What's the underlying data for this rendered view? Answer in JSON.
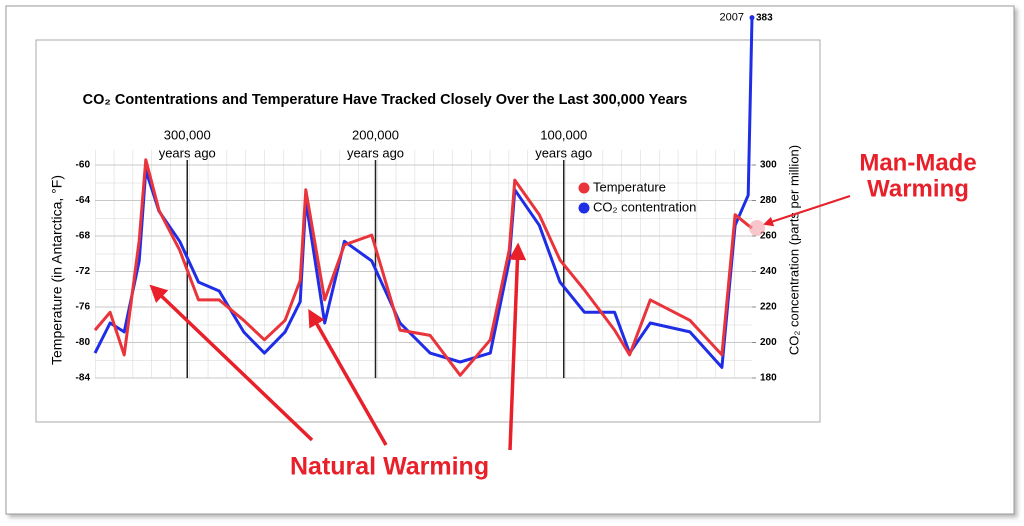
{
  "chart_data": {
    "type": "line",
    "title": "CO₂ Contentrations and Temperature Have Tracked Closely Over the Last 300,000 Years",
    "ylabel": "Temperature (in Antarctica, °F)",
    "y2label": "CO₂ concentration (parts per million)",
    "x": [
      349000,
      341000,
      333500,
      325500,
      322000,
      315000,
      304000,
      294000,
      283000,
      270000,
      259000,
      248000,
      240000,
      237000,
      227000,
      216500,
      202000,
      187000,
      171000,
      155000,
      139000,
      129000,
      126000,
      113000,
      102000,
      89000,
      73000,
      65000,
      54000,
      33000,
      16000,
      9000,
      2000,
      0
    ],
    "xlim": [
      349000,
      0
    ],
    "xticks": [
      {
        "value": 300000,
        "label": "300,000"
      },
      {
        "value": 200000,
        "label": "200,000"
      },
      {
        "value": 100000,
        "label": "100,000"
      }
    ],
    "xtick_unit": "years ago",
    "ylim": [
      -84,
      -60
    ],
    "yticks": [
      -60,
      -64,
      -68,
      -72,
      -76,
      -80,
      -84
    ],
    "y2lim": [
      180,
      300
    ],
    "y2ticks": [
      180,
      200,
      220,
      240,
      260,
      280,
      300
    ],
    "grid": true,
    "legend": "upper right",
    "series": [
      {
        "name": "Temperature",
        "color": "#e8343a",
        "axis": "y",
        "values": [
          -78.6,
          -76.6,
          -81.4,
          -68.5,
          -59.4,
          -65.1,
          -69.6,
          -75.2,
          -75.2,
          -77.5,
          -79.7,
          -77.5,
          -73.0,
          -62.8,
          -75.2,
          -69.0,
          -67.9,
          -78.6,
          -79.2,
          -83.7,
          -79.7,
          -69.6,
          -61.7,
          -65.6,
          -70.7,
          -74.1,
          -78.6,
          -81.4,
          -75.2,
          -77.5,
          -81.4,
          -65.6,
          -66.8,
          -67.1
        ]
      },
      {
        "name": "CO₂ contentration",
        "color": "#1f2ee6",
        "axis": "y2",
        "values": [
          194,
          211,
          206,
          246,
          297,
          274,
          257,
          234,
          229,
          206,
          194,
          206,
          223,
          280,
          211,
          257,
          246,
          211,
          194,
          189,
          194,
          246,
          286,
          266,
          234,
          217,
          217,
          194,
          211,
          206,
          186,
          266,
          283,
          383
        ]
      }
    ],
    "annotations": [
      "2007",
      "Natural Warming",
      "Man-Made",
      "Warming"
    ]
  }
}
